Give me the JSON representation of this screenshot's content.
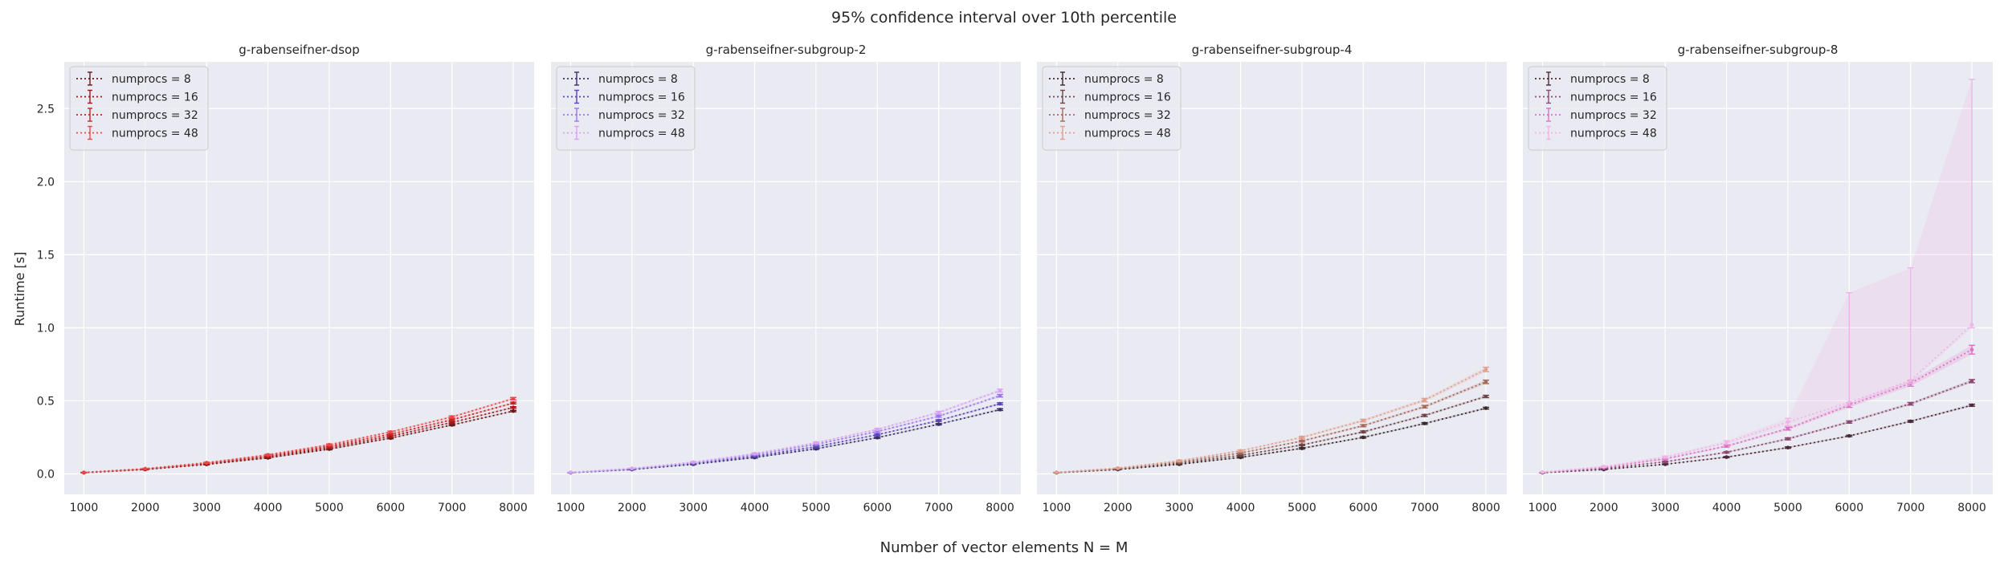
{
  "figure": {
    "suptitle": "95% confidence interval over 10th percentile",
    "xlabel": "Number of vector elements N = M",
    "ylabel": "Runtime [s]"
  },
  "chart_data": [
    {
      "type": "line",
      "title": "g-rabenseifner-dsop",
      "x": [
        1000,
        2000,
        3000,
        4000,
        5000,
        6000,
        7000,
        8000
      ],
      "xticks": [
        1000,
        2000,
        3000,
        4000,
        5000,
        6000,
        7000,
        8000
      ],
      "xlim": [
        680,
        8340
      ],
      "ylim": [
        -0.14,
        2.82
      ],
      "yticks": [
        0.0,
        0.5,
        1.0,
        1.5,
        2.0,
        2.5
      ],
      "yticklabels": [
        "0.0",
        "0.5",
        "1.0",
        "1.5",
        "2.0",
        "2.5"
      ],
      "grid": true,
      "legend": "top-left",
      "series": [
        {
          "name": "numprocs = 8",
          "color": "#6b1818",
          "values": [
            0.008,
            0.03,
            0.065,
            0.11,
            0.17,
            0.245,
            0.335,
            0.43
          ],
          "ci_low": [
            0.007,
            0.028,
            0.062,
            0.106,
            0.165,
            0.24,
            0.33,
            0.425
          ],
          "ci_high": [
            0.009,
            0.032,
            0.068,
            0.114,
            0.175,
            0.25,
            0.34,
            0.435
          ]
        },
        {
          "name": "numprocs = 16",
          "color": "#9b1b1b",
          "values": [
            0.009,
            0.032,
            0.069,
            0.117,
            0.18,
            0.258,
            0.352,
            0.455
          ],
          "ci_low": [
            0.008,
            0.03,
            0.066,
            0.113,
            0.175,
            0.253,
            0.347,
            0.45
          ],
          "ci_high": [
            0.01,
            0.034,
            0.072,
            0.121,
            0.185,
            0.263,
            0.357,
            0.46
          ]
        },
        {
          "name": "numprocs = 32",
          "color": "#cc2020",
          "values": [
            0.01,
            0.034,
            0.073,
            0.124,
            0.19,
            0.272,
            0.37,
            0.485
          ],
          "ci_low": [
            0.009,
            0.032,
            0.07,
            0.12,
            0.185,
            0.267,
            0.364,
            0.479
          ],
          "ci_high": [
            0.011,
            0.036,
            0.076,
            0.128,
            0.195,
            0.277,
            0.376,
            0.491
          ]
        },
        {
          "name": "numprocs = 48",
          "color": "#e84a4a",
          "values": [
            0.01,
            0.036,
            0.077,
            0.131,
            0.2,
            0.287,
            0.39,
            0.515
          ],
          "ci_low": [
            0.009,
            0.034,
            0.074,
            0.127,
            0.195,
            0.281,
            0.383,
            0.507
          ],
          "ci_high": [
            0.011,
            0.038,
            0.08,
            0.135,
            0.205,
            0.293,
            0.397,
            0.523
          ]
        }
      ]
    },
    {
      "type": "line",
      "title": "g-rabenseifner-subgroup-2",
      "x": [
        1000,
        2000,
        3000,
        4000,
        5000,
        6000,
        7000,
        8000
      ],
      "xticks": [
        1000,
        2000,
        3000,
        4000,
        5000,
        6000,
        7000,
        8000
      ],
      "xlim": [
        680,
        8340
      ],
      "ylim": [
        -0.14,
        2.82
      ],
      "yticks": [
        0.0,
        0.5,
        1.0,
        1.5,
        2.0,
        2.5
      ],
      "grid": true,
      "legend": "top-left",
      "series": [
        {
          "name": "numprocs = 8",
          "color": "#3b2f6b",
          "values": [
            0.008,
            0.03,
            0.066,
            0.112,
            0.172,
            0.248,
            0.34,
            0.44
          ],
          "ci_low": [
            0.007,
            0.028,
            0.063,
            0.108,
            0.167,
            0.243,
            0.335,
            0.434
          ],
          "ci_high": [
            0.009,
            0.032,
            0.069,
            0.116,
            0.177,
            0.253,
            0.345,
            0.446
          ]
        },
        {
          "name": "numprocs = 16",
          "color": "#5a45b5",
          "values": [
            0.009,
            0.033,
            0.071,
            0.121,
            0.186,
            0.268,
            0.365,
            0.48
          ],
          "ci_low": [
            0.008,
            0.031,
            0.068,
            0.117,
            0.181,
            0.263,
            0.359,
            0.473
          ],
          "ci_high": [
            0.01,
            0.035,
            0.074,
            0.125,
            0.191,
            0.273,
            0.371,
            0.487
          ]
        },
        {
          "name": "numprocs = 32",
          "color": "#9a78e6",
          "values": [
            0.01,
            0.036,
            0.077,
            0.132,
            0.202,
            0.29,
            0.395,
            0.535
          ],
          "ci_low": [
            0.009,
            0.034,
            0.074,
            0.128,
            0.197,
            0.284,
            0.388,
            0.526
          ],
          "ci_high": [
            0.011,
            0.038,
            0.08,
            0.136,
            0.207,
            0.296,
            0.402,
            0.544
          ]
        },
        {
          "name": "numprocs = 48",
          "color": "#d9a2f2",
          "values": [
            0.011,
            0.038,
            0.081,
            0.139,
            0.213,
            0.305,
            0.42,
            0.57
          ],
          "ci_low": [
            0.01,
            0.036,
            0.078,
            0.135,
            0.208,
            0.299,
            0.412,
            0.56
          ],
          "ci_high": [
            0.012,
            0.04,
            0.084,
            0.143,
            0.218,
            0.311,
            0.428,
            0.58
          ]
        }
      ]
    },
    {
      "type": "line",
      "title": "g-rabenseifner-subgroup-4",
      "x": [
        1000,
        2000,
        3000,
        4000,
        5000,
        6000,
        7000,
        8000
      ],
      "xticks": [
        1000,
        2000,
        3000,
        4000,
        5000,
        6000,
        7000,
        8000
      ],
      "xlim": [
        680,
        8340
      ],
      "ylim": [
        -0.14,
        2.82
      ],
      "yticks": [
        0.0,
        0.5,
        1.0,
        1.5,
        2.0,
        2.5
      ],
      "grid": true,
      "legend": "top-left",
      "series": [
        {
          "name": "numprocs = 8",
          "color": "#3a2a2a",
          "values": [
            0.008,
            0.03,
            0.066,
            0.113,
            0.175,
            0.25,
            0.345,
            0.45
          ],
          "ci_low": [
            0.007,
            0.028,
            0.063,
            0.109,
            0.17,
            0.245,
            0.339,
            0.444
          ],
          "ci_high": [
            0.009,
            0.032,
            0.069,
            0.117,
            0.18,
            0.255,
            0.351,
            0.456
          ]
        },
        {
          "name": "numprocs = 16",
          "color": "#6e4545",
          "values": [
            0.009,
            0.034,
            0.074,
            0.127,
            0.198,
            0.288,
            0.4,
            0.53
          ],
          "ci_low": [
            0.008,
            0.032,
            0.071,
            0.123,
            0.193,
            0.282,
            0.393,
            0.522
          ],
          "ci_high": [
            0.01,
            0.036,
            0.077,
            0.131,
            0.203,
            0.294,
            0.407,
            0.538
          ]
        },
        {
          "name": "numprocs = 32",
          "color": "#a46a5a",
          "values": [
            0.01,
            0.037,
            0.082,
            0.143,
            0.225,
            0.33,
            0.46,
            0.63
          ],
          "ci_low": [
            0.009,
            0.035,
            0.078,
            0.138,
            0.219,
            0.323,
            0.451,
            0.618
          ],
          "ci_high": [
            0.011,
            0.039,
            0.086,
            0.148,
            0.231,
            0.337,
            0.469,
            0.642
          ]
        },
        {
          "name": "numprocs = 48",
          "color": "#e0a08e",
          "values": [
            0.011,
            0.04,
            0.09,
            0.158,
            0.25,
            0.365,
            0.505,
            0.715
          ],
          "ci_low": [
            0.01,
            0.038,
            0.086,
            0.152,
            0.243,
            0.356,
            0.493,
            0.7
          ],
          "ci_high": [
            0.012,
            0.042,
            0.094,
            0.164,
            0.257,
            0.374,
            0.517,
            0.73
          ]
        }
      ]
    },
    {
      "type": "line",
      "title": "g-rabenseifner-subgroup-8",
      "x": [
        1000,
        2000,
        3000,
        4000,
        5000,
        6000,
        7000,
        8000
      ],
      "xticks": [
        1000,
        2000,
        3000,
        4000,
        5000,
        6000,
        7000,
        8000
      ],
      "xlim": [
        680,
        8340
      ],
      "ylim": [
        -0.14,
        2.82
      ],
      "yticks": [
        0.0,
        0.5,
        1.0,
        1.5,
        2.0,
        2.5
      ],
      "grid": true,
      "legend": "top-left",
      "series": [
        {
          "name": "numprocs = 8",
          "color": "#4a2a3a",
          "values": [
            0.008,
            0.03,
            0.066,
            0.115,
            0.18,
            0.26,
            0.36,
            0.47
          ],
          "ci_low": [
            0.007,
            0.028,
            0.063,
            0.111,
            0.175,
            0.255,
            0.354,
            0.463
          ],
          "ci_high": [
            0.009,
            0.032,
            0.069,
            0.119,
            0.185,
            0.265,
            0.366,
            0.477
          ]
        },
        {
          "name": "numprocs = 16",
          "color": "#8b4a74",
          "values": [
            0.01,
            0.037,
            0.083,
            0.148,
            0.24,
            0.355,
            0.48,
            0.635
          ],
          "ci_low": [
            0.009,
            0.035,
            0.079,
            0.143,
            0.233,
            0.347,
            0.471,
            0.624
          ],
          "ci_high": [
            0.011,
            0.039,
            0.087,
            0.153,
            0.247,
            0.363,
            0.489,
            0.646
          ]
        },
        {
          "name": "numprocs = 32",
          "color": "#e070c6",
          "values": [
            0.012,
            0.045,
            0.103,
            0.19,
            0.31,
            0.47,
            0.62,
            0.85
          ],
          "ci_low": [
            0.011,
            0.042,
            0.098,
            0.183,
            0.3,
            0.455,
            0.6,
            0.82
          ],
          "ci_high": [
            0.013,
            0.048,
            0.108,
            0.197,
            0.32,
            0.485,
            0.64,
            0.88
          ]
        },
        {
          "name": "numprocs = 48",
          "color": "#f0b4e6",
          "values": [
            0.013,
            0.05,
            0.115,
            0.215,
            0.355,
            0.49,
            0.64,
            1.02
          ],
          "ci_low": [
            0.012,
            0.046,
            0.108,
            0.203,
            0.33,
            0.47,
            0.62,
            1.0
          ],
          "ci_high": [
            0.014,
            0.054,
            0.122,
            0.227,
            0.38,
            1.24,
            1.41,
            2.7
          ]
        }
      ]
    }
  ]
}
